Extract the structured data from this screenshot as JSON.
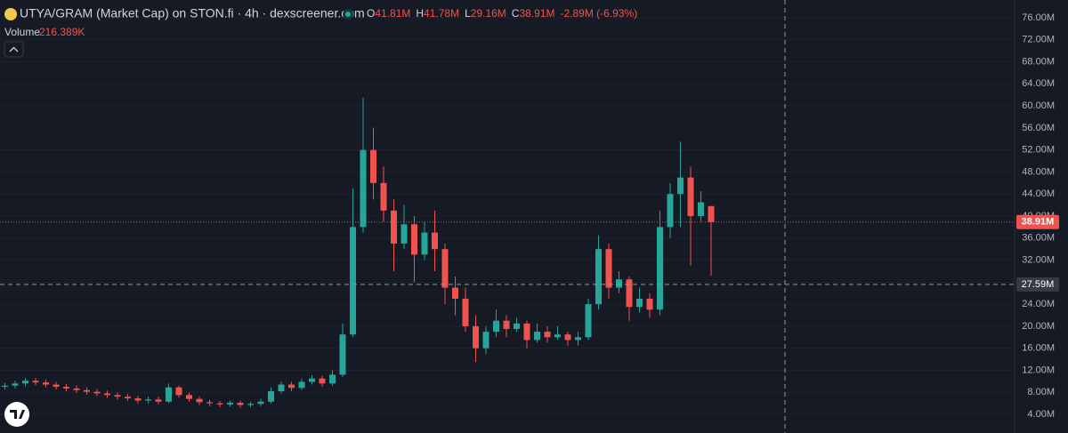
{
  "chart_data": {
    "type": "candlestick",
    "title": "UTYA/GRAM (Market Cap) on STON.fi · 4h · dexscreener.com",
    "ohlc": [
      {
        "label": "O",
        "value": "41.81M"
      },
      {
        "label": "H",
        "value": "41.78M"
      },
      {
        "label": "L",
        "value": "29.16M"
      },
      {
        "label": "C",
        "value": "38.91M"
      }
    ],
    "change": "-2.89M (-6.93%)",
    "volume_label": "Volume",
    "volume_value": "216.389K",
    "up_color": "#26a69a",
    "down_color": "#ef5350",
    "ylim": [
      0.61,
      79.23
    ],
    "yticks": [
      {
        "value": 4,
        "label": "4.00M"
      },
      {
        "value": 8,
        "label": "8.00M"
      },
      {
        "value": 12,
        "label": "12.00M"
      },
      {
        "value": 16,
        "label": "16.00M"
      },
      {
        "value": 20,
        "label": "20.00M"
      },
      {
        "value": 24,
        "label": "24.00M"
      },
      {
        "value": 28,
        "label": "28.00M"
      },
      {
        "value": 32,
        "label": "32.00M"
      },
      {
        "value": 36,
        "label": "36.00M"
      },
      {
        "value": 40,
        "label": "40.00M"
      },
      {
        "value": 44,
        "label": "44.00M"
      },
      {
        "value": 48,
        "label": "48.00M"
      },
      {
        "value": 52,
        "label": "52.00M"
      },
      {
        "value": 56,
        "label": "56.00M"
      },
      {
        "value": 60,
        "label": "60.00M"
      },
      {
        "value": 64,
        "label": "64.00M"
      },
      {
        "value": 68,
        "label": "68.00M"
      },
      {
        "value": 72,
        "label": "72.00M"
      },
      {
        "value": 76,
        "label": "76.00M"
      }
    ],
    "grid": true,
    "last_price": {
      "value": 38.91,
      "label": "38.91M"
    },
    "crosshair": {
      "value": 27.59,
      "label": "27.59M"
    },
    "open": [
      9.0,
      9.2,
      9.6,
      10.1,
      9.8,
      9.4,
      9.0,
      8.7,
      8.4,
      8.1,
      7.8,
      7.5,
      7.2,
      6.9,
      6.5,
      6.7,
      6.3,
      8.9,
      7.5,
      6.8,
      6.2,
      6.0,
      5.8,
      6.1,
      5.7,
      5.9,
      6.3,
      8.2,
      9.4,
      8.8,
      9.9,
      10.5,
      9.6,
      11.2,
      18.5,
      38.0,
      52.0,
      46.0,
      41.0,
      35.0,
      38.5,
      33.0,
      37.0,
      34.0,
      27.0,
      25.0,
      20.0,
      16.0,
      19.0,
      21.0,
      19.5,
      20.5,
      17.5,
      19.0,
      18.0,
      18.5,
      17.5,
      18.0,
      24.0,
      34.0,
      27.0,
      28.5,
      23.5,
      25.0,
      23.0,
      38.0,
      44.0,
      47.0,
      40.0,
      41.81
    ],
    "high": [
      9.7,
      10.1,
      10.6,
      10.6,
      10.3,
      9.9,
      9.5,
      9.2,
      8.9,
      8.6,
      8.3,
      8.0,
      7.7,
      7.4,
      7.2,
      7.2,
      9.6,
      9.2,
      7.9,
      7.2,
      6.6,
      6.4,
      6.5,
      6.5,
      6.3,
      6.8,
      8.9,
      10.0,
      9.9,
      10.5,
      11.1,
      11.0,
      12.0,
      20.5,
      45,
      61.5,
      56,
      49,
      43,
      42,
      40,
      39,
      41,
      35,
      29,
      27,
      22,
      20,
      23,
      22,
      21.5,
      21,
      20.5,
      20,
      20,
      19,
      19,
      25,
      36.5,
      35,
      30,
      29,
      27,
      26,
      41,
      46,
      53.5,
      49,
      44.5,
      41.78
    ],
    "low": [
      8.5,
      8.7,
      9.1,
      9.3,
      8.9,
      8.5,
      8.2,
      7.9,
      7.6,
      7.3,
      7.0,
      6.7,
      6.4,
      6.0,
      6.0,
      5.8,
      6.0,
      7.0,
      6.3,
      5.7,
      5.5,
      5.3,
      5.4,
      5.2,
      5.3,
      5.5,
      6.0,
      7.8,
      8.2,
      8.4,
      9.4,
      9.0,
      9.2,
      10.8,
      18.0,
      37,
      43,
      39,
      30,
      34,
      28,
      32,
      30,
      24,
      22,
      19,
      13.5,
      15,
      18,
      18,
      19,
      16,
      17,
      17,
      17.5,
      16.5,
      16.5,
      17.5,
      23,
      25,
      26,
      21,
      22.5,
      21.5,
      22,
      36,
      38,
      31,
      39,
      29.16
    ],
    "close": [
      9.2,
      9.6,
      10.1,
      9.8,
      9.4,
      9.0,
      8.7,
      8.4,
      8.1,
      7.8,
      7.5,
      7.2,
      6.9,
      6.5,
      6.7,
      6.3,
      8.9,
      7.5,
      6.8,
      6.2,
      6.0,
      5.8,
      6.1,
      5.7,
      5.9,
      6.3,
      8.2,
      9.4,
      8.8,
      9.9,
      10.5,
      9.6,
      11.2,
      18.5,
      38.0,
      52.0,
      46.0,
      41.0,
      35.0,
      38.5,
      33.0,
      37.0,
      34.0,
      27.0,
      25.0,
      20.0,
      16.0,
      19.0,
      21.0,
      19.5,
      20.5,
      17.5,
      19.0,
      18.0,
      18.5,
      17.5,
      18.0,
      24.0,
      34.0,
      27.0,
      28.5,
      23.5,
      25.0,
      23.0,
      38.0,
      44.0,
      47.0,
      40.0,
      42.5,
      38.91
    ]
  }
}
